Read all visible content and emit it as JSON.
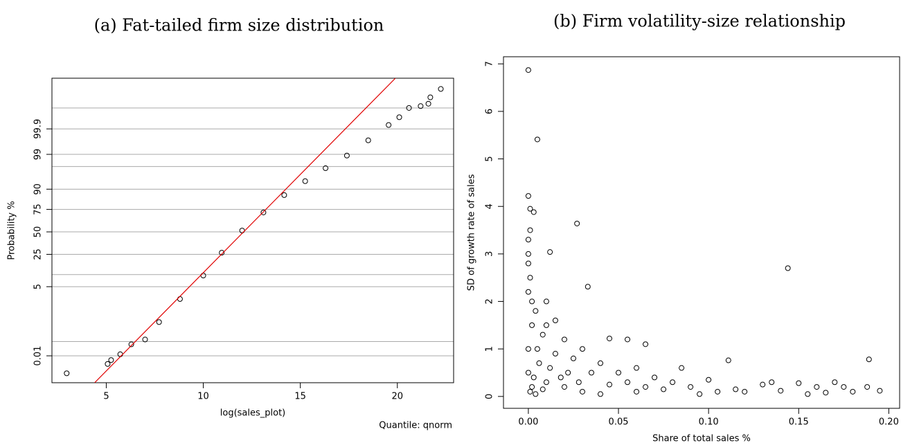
{
  "chart_data": [
    {
      "type": "qq",
      "title": "(a) Fat-tailed firm size distribution",
      "xlabel": "log(sales_plot)",
      "ylabel": "Probability %",
      "annotation": "Quantile: qnorm",
      "yscale": "probit",
      "grid": true,
      "color": "#000000",
      "x": [
        2.96,
        5.07,
        5.25,
        5.72,
        6.29,
        7.0,
        7.72,
        8.8,
        10.0,
        10.95,
        12.0,
        13.1,
        14.17,
        15.25,
        16.3,
        17.4,
        18.5,
        19.55,
        20.1,
        20.6,
        21.2,
        21.6,
        21.7,
        22.24
      ],
      "values": [
        0.0011,
        0.0037,
        0.006,
        0.012,
        0.037,
        0.062,
        0.34,
        2.2,
        9.5,
        26.6,
        51.6,
        72,
        86.5,
        93.6,
        97.2,
        98.9,
        99.7,
        99.933,
        99.971,
        99.99,
        99.992,
        99.994,
        99.9973,
        99.9991
      ],
      "xlim": [
        2.2,
        22.9
      ],
      "ylim": [
        0.0003,
        99.9998
      ],
      "xticks": [
        5,
        10,
        15,
        20
      ],
      "yticks": [
        0.01,
        5,
        25,
        50,
        75,
        90,
        99,
        99.9
      ],
      "minor_grid": [
        99.99,
        97.5,
        10,
        0.05
      ],
      "reference_line": {
        "color": "#e00000",
        "x": [
          4.4,
          19.9
        ],
        "values": [
          0.0003,
          99.9998
        ]
      }
    },
    {
      "type": "scatter",
      "title": "(b) Firm volatility-size relationship",
      "xlabel": "Share of total sales %",
      "ylabel": "SD of growth rate of sales",
      "color": "#000000",
      "x": [
        0.0,
        0.005,
        0.0,
        0.001,
        0.003,
        0.027,
        0.144,
        0.012,
        0.033,
        0.001,
        0.0,
        0.0,
        0.0,
        0.001,
        0.0,
        0.002,
        0.004,
        0.01,
        0.01,
        0.008,
        0.015,
        0.02,
        0.045,
        0.055,
        0.065,
        0.111,
        0.189,
        0.03,
        0.04,
        0.05,
        0.06,
        0.07,
        0.08,
        0.09,
        0.1,
        0.12,
        0.13,
        0.135,
        0.15,
        0.16,
        0.17,
        0.18,
        0.188,
        0.195,
        0.155,
        0.115,
        0.085,
        0.025,
        0.035,
        0.015,
        0.005,
        0.002,
        0.0,
        0.0,
        0.003,
        0.006,
        0.01,
        0.02,
        0.03,
        0.04,
        0.06,
        0.075,
        0.095,
        0.105,
        0.14,
        0.165,
        0.175,
        0.001,
        0.002,
        0.004,
        0.008,
        0.012,
        0.018,
        0.022,
        0.028,
        0.045,
        0.055,
        0.065
      ],
      "values": [
        6.87,
        5.41,
        4.22,
        3.95,
        3.88,
        3.64,
        2.7,
        3.04,
        2.31,
        3.5,
        3.3,
        3.0,
        2.8,
        2.5,
        2.2,
        2.0,
        1.8,
        2.0,
        1.5,
        1.3,
        1.6,
        1.2,
        1.22,
        1.2,
        1.1,
        0.76,
        0.78,
        1.0,
        0.7,
        0.5,
        0.6,
        0.4,
        0.3,
        0.2,
        0.35,
        0.1,
        0.25,
        0.3,
        0.28,
        0.2,
        0.3,
        0.1,
        0.2,
        0.12,
        0.05,
        0.15,
        0.6,
        0.8,
        0.5,
        0.9,
        1.0,
        1.5,
        1.0,
        0.5,
        0.4,
        0.7,
        0.3,
        0.2,
        0.1,
        0.05,
        0.1,
        0.15,
        0.05,
        0.1,
        0.12,
        0.08,
        0.2,
        0.1,
        0.2,
        0.05,
        0.15,
        0.6,
        0.4,
        0.5,
        0.3,
        0.25,
        0.3,
        0.2
      ],
      "xlim": [
        -0.0138,
        0.206
      ],
      "ylim": [
        -0.25,
        7.15
      ],
      "xticks": [
        {
          "value": 0,
          "label": "0.00"
        },
        {
          "value": 0.05,
          "label": "0.05"
        },
        {
          "value": 0.1,
          "label": "0.10"
        },
        {
          "value": 0.15,
          "label": "0.15"
        },
        {
          "value": 0.2,
          "label": "0.20"
        }
      ],
      "yticks": [
        0,
        1,
        2,
        3,
        4,
        5,
        6,
        7
      ]
    }
  ]
}
